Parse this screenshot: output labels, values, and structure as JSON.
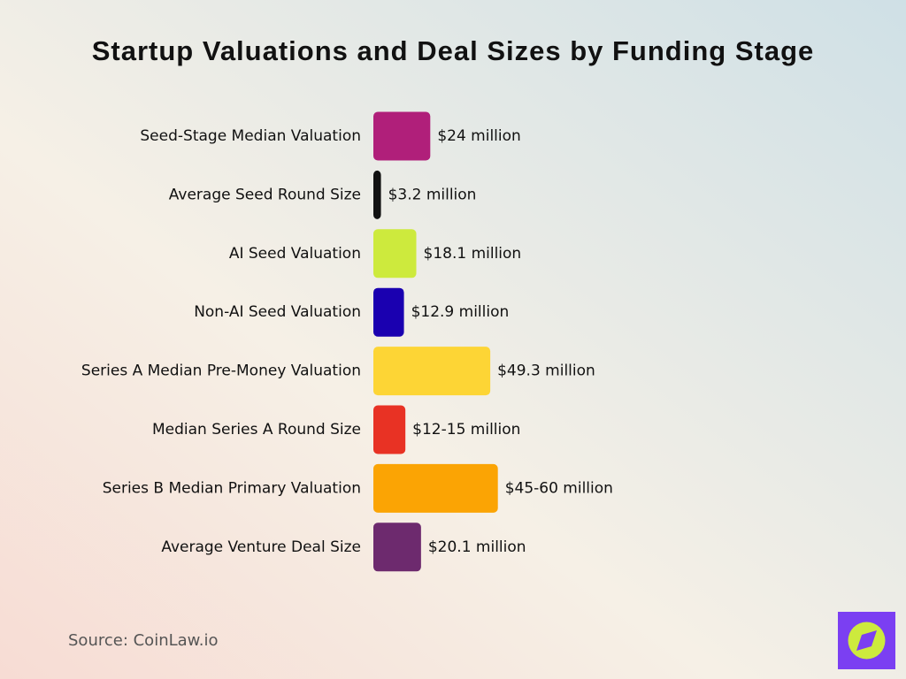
{
  "chart_data": {
    "type": "bar",
    "orientation": "horizontal",
    "title": "Startup Valuations and Deal Sizes by Funding Stage",
    "categories": [
      "Seed-Stage Median Valuation",
      "Average Seed Round Size",
      "AI Seed Valuation",
      "Non-AI Seed Valuation",
      "Series A Median Pre-Money Valuation",
      "Median Series A Round Size",
      "Series B Median Primary Valuation",
      "Average Venture Deal Size"
    ],
    "values": [
      24,
      3.2,
      18.1,
      12.9,
      49.3,
      13.5,
      52.5,
      20.1
    ],
    "value_labels": [
      "$24 million",
      "$3.2 million",
      "$18.1 million",
      "$12.9 million",
      "$49.3 million",
      "$12-15 million",
      "$45-60 million",
      "$20.1 million"
    ],
    "colors": [
      "#b01f7a",
      "#111111",
      "#cdea3d",
      "#1a00b0",
      "#fdd535",
      "#e83224",
      "#fba404",
      "#6d2a6e"
    ],
    "source": "Source: CoinLaw.io"
  }
}
